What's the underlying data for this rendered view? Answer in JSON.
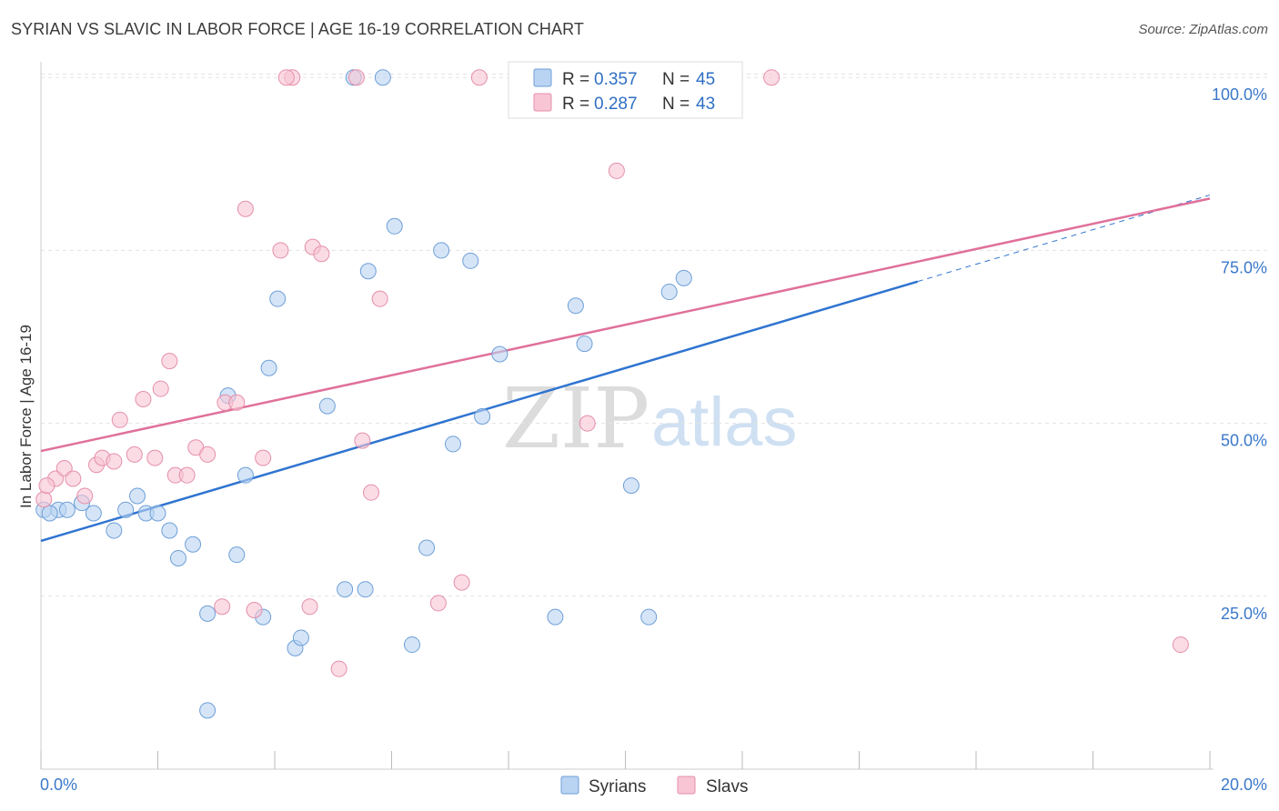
{
  "title": "SYRIAN VS SLAVIC IN LABOR FORCE | AGE 16-19 CORRELATION CHART",
  "source": "Source: ZipAtlas.com",
  "colors": {
    "syrians_fill": "#b9d3f2",
    "syrians_stroke": "#6e9fd8",
    "syrians_line": "#2f74d0",
    "slavs_fill": "#f8c5d4",
    "slavs_stroke": "#e58fab",
    "slavs_line": "#e0709a",
    "tick_text": "#3a78c9",
    "grid": "#e3e3e3"
  },
  "legend": {
    "syrians": {
      "r_label": "R =",
      "r_value": "0.357",
      "n_label": "N =",
      "n_value": "45"
    },
    "slavs": {
      "r_label": "R =",
      "r_value": "0.287",
      "n_label": "N =",
      "n_value": "43"
    }
  },
  "watermark": {
    "zip": "ZIP",
    "atlas": "atlas"
  },
  "chart_data": {
    "type": "scatter",
    "title": "SYRIAN VS SLAVIC IN LABOR FORCE | AGE 16-19 CORRELATION CHART",
    "xlabel": "",
    "ylabel": "In Labor Force | Age 16-19",
    "xlim": [
      0,
      20
    ],
    "ylim": [
      0,
      102
    ],
    "x_tick_labels": [
      "0.0%",
      "20.0%"
    ],
    "y_ticks": [
      25,
      50,
      75,
      100
    ],
    "y_tick_labels": [
      "25.0%",
      "50.0%",
      "75.0%",
      "100.0%"
    ],
    "legend_bottom": [
      "Syrians",
      "Slavs"
    ],
    "series": [
      {
        "name": "Syrians",
        "r": 0.357,
        "n": 45,
        "trend": {
          "x": [
            0,
            15
          ],
          "y": [
            33.0,
            70.5
          ],
          "dash_to": [
            20,
            83.0
          ]
        },
        "points": [
          [
            0.05,
            37.5
          ],
          [
            0.3,
            37.5
          ],
          [
            0.45,
            37.5
          ],
          [
            0.7,
            38.5
          ],
          [
            0.9,
            37.0
          ],
          [
            1.25,
            34.5
          ],
          [
            1.45,
            37.5
          ],
          [
            1.65,
            39.5
          ],
          [
            1.8,
            37.0
          ],
          [
            2.0,
            37.0
          ],
          [
            2.2,
            34.5
          ],
          [
            2.35,
            30.5
          ],
          [
            2.6,
            32.5
          ],
          [
            2.85,
            22.5
          ],
          [
            2.85,
            8.5
          ],
          [
            3.2,
            54.0
          ],
          [
            3.35,
            31.0
          ],
          [
            3.5,
            42.5
          ],
          [
            3.8,
            22.0
          ],
          [
            3.9,
            58.0
          ],
          [
            4.05,
            68.0
          ],
          [
            4.35,
            17.5
          ],
          [
            4.45,
            19.0
          ],
          [
            4.9,
            52.5
          ],
          [
            5.2,
            26.0
          ],
          [
            5.35,
            100.0
          ],
          [
            5.55,
            26.0
          ],
          [
            5.6,
            72.0
          ],
          [
            5.85,
            100.0
          ],
          [
            6.05,
            78.5
          ],
          [
            6.35,
            18.0
          ],
          [
            6.6,
            32.0
          ],
          [
            6.85,
            75.0
          ],
          [
            7.05,
            47.0
          ],
          [
            7.35,
            73.5
          ],
          [
            7.55,
            51.0
          ],
          [
            7.85,
            60.0
          ],
          [
            8.8,
            22.0
          ],
          [
            9.15,
            67.0
          ],
          [
            9.3,
            61.5
          ],
          [
            10.1,
            41.0
          ],
          [
            10.4,
            22.0
          ],
          [
            10.75,
            69.0
          ],
          [
            11.0,
            71.0
          ],
          [
            0.15,
            37.0
          ]
        ]
      },
      {
        "name": "Slavs",
        "r": 0.287,
        "n": 43,
        "trend": {
          "x": [
            0,
            20
          ],
          "y": [
            46.0,
            82.5
          ]
        },
        "points": [
          [
            0.05,
            39.0
          ],
          [
            0.25,
            42.0
          ],
          [
            0.4,
            43.5
          ],
          [
            0.55,
            42.0
          ],
          [
            0.75,
            39.5
          ],
          [
            0.95,
            44.0
          ],
          [
            1.05,
            45.0
          ],
          [
            1.25,
            44.5
          ],
          [
            1.35,
            50.5
          ],
          [
            1.6,
            45.5
          ],
          [
            1.75,
            53.5
          ],
          [
            1.95,
            45.0
          ],
          [
            2.05,
            55.0
          ],
          [
            2.2,
            59.0
          ],
          [
            2.3,
            42.5
          ],
          [
            2.5,
            42.5
          ],
          [
            2.65,
            46.5
          ],
          [
            2.85,
            45.5
          ],
          [
            3.1,
            23.5
          ],
          [
            3.15,
            53.0
          ],
          [
            3.35,
            53.0
          ],
          [
            3.5,
            81.0
          ],
          [
            3.65,
            23.0
          ],
          [
            3.8,
            45.0
          ],
          [
            4.1,
            75.0
          ],
          [
            4.3,
            100.0
          ],
          [
            4.6,
            23.5
          ],
          [
            4.65,
            75.5
          ],
          [
            4.8,
            74.5
          ],
          [
            5.1,
            14.5
          ],
          [
            5.4,
            100.0
          ],
          [
            5.5,
            47.5
          ],
          [
            5.65,
            40.0
          ],
          [
            5.8,
            68.0
          ],
          [
            6.8,
            24.0
          ],
          [
            7.2,
            27.0
          ],
          [
            7.5,
            100.0
          ],
          [
            9.35,
            50.0
          ],
          [
            9.85,
            86.5
          ],
          [
            12.5,
            100.0
          ],
          [
            19.5,
            18.0
          ],
          [
            4.2,
            100.0
          ],
          [
            0.1,
            41.0
          ]
        ]
      }
    ]
  }
}
